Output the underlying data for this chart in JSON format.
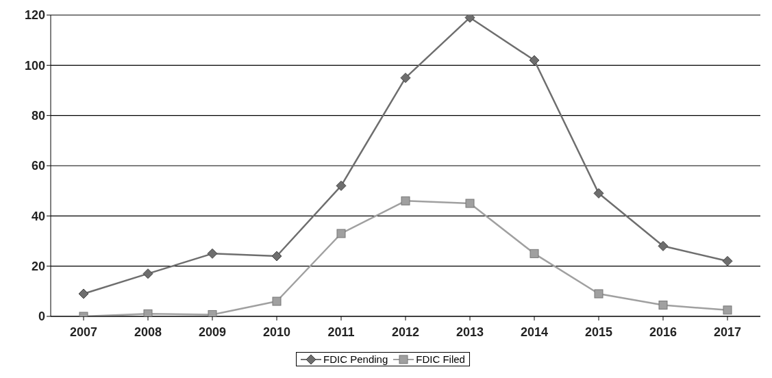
{
  "chart_data": {
    "type": "line",
    "categories": [
      "2007",
      "2008",
      "2009",
      "2010",
      "2011",
      "2012",
      "2013",
      "2014",
      "2015",
      "2016",
      "2017"
    ],
    "series": [
      {
        "name": "FDIC Pending",
        "color": "#6e6e6e",
        "marker": "diamond",
        "values": [
          9,
          17,
          25,
          24,
          52,
          95,
          119,
          102,
          49,
          28,
          22
        ]
      },
      {
        "name": "FDIC Filed",
        "color": "#a0a0a0",
        "marker": "square",
        "values": [
          0,
          1,
          0.7,
          6,
          33,
          46,
          45,
          25,
          9,
          4.5,
          2.5
        ]
      }
    ],
    "ylim": [
      0,
      120
    ],
    "yticks": [
      0,
      20,
      40,
      60,
      80,
      100,
      120
    ],
    "grid": "y",
    "legend": "bottom"
  }
}
